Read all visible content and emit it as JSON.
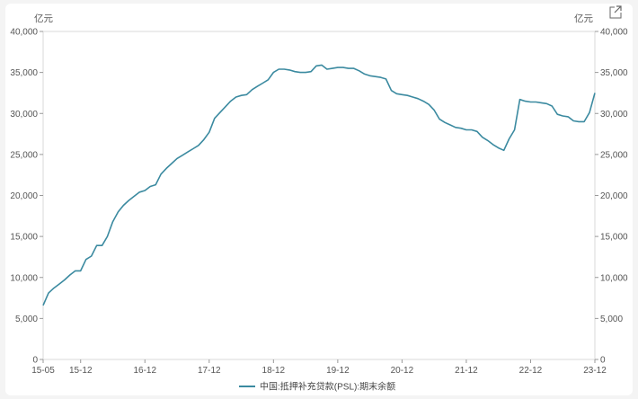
{
  "chart_data": {
    "type": "line",
    "title": "",
    "y_unit_left": "亿元",
    "y_unit_right": "亿元",
    "ylim": [
      0,
      40000
    ],
    "y_ticks": [
      0,
      5000,
      10000,
      15000,
      20000,
      25000,
      30000,
      35000,
      40000
    ],
    "y_tick_labels": [
      "0",
      "5,000",
      "10,000",
      "15,000",
      "20,000",
      "25,000",
      "30,000",
      "35,000",
      "40,000"
    ],
    "x_ticks": [
      "2015-05",
      "2015-12",
      "2016-12",
      "2017-12",
      "2018-12",
      "2019-12",
      "2020-12",
      "2021-12",
      "2022-12",
      "2023-12"
    ],
    "x_tick_labels": [
      "15-05",
      "15-12",
      "16-12",
      "17-12",
      "18-12",
      "19-12",
      "20-12",
      "21-12",
      "22-12",
      "23-12"
    ],
    "xlim": [
      "2015-05",
      "2023-12"
    ],
    "grid": false,
    "legend_position": "bottom-center",
    "series": [
      {
        "name": "中国:抵押补充贷款(PSL):期末余额",
        "color": "#3b8aa0",
        "x": [
          "2015-05",
          "2015-06",
          "2015-07",
          "2015-08",
          "2015-09",
          "2015-10",
          "2015-11",
          "2015-12",
          "2016-01",
          "2016-02",
          "2016-03",
          "2016-04",
          "2016-05",
          "2016-06",
          "2016-07",
          "2016-08",
          "2016-09",
          "2016-10",
          "2016-11",
          "2016-12",
          "2017-01",
          "2017-02",
          "2017-03",
          "2017-04",
          "2017-05",
          "2017-06",
          "2017-07",
          "2017-08",
          "2017-09",
          "2017-10",
          "2017-11",
          "2017-12",
          "2018-01",
          "2018-02",
          "2018-03",
          "2018-04",
          "2018-05",
          "2018-06",
          "2018-07",
          "2018-08",
          "2018-09",
          "2018-10",
          "2018-11",
          "2018-12",
          "2019-01",
          "2019-02",
          "2019-03",
          "2019-04",
          "2019-05",
          "2019-06",
          "2019-07",
          "2019-08",
          "2019-09",
          "2019-10",
          "2019-11",
          "2019-12",
          "2020-01",
          "2020-02",
          "2020-03",
          "2020-04",
          "2020-05",
          "2020-06",
          "2020-07",
          "2020-08",
          "2020-09",
          "2020-10",
          "2020-11",
          "2020-12",
          "2021-01",
          "2021-02",
          "2021-03",
          "2021-04",
          "2021-05",
          "2021-06",
          "2021-07",
          "2021-08",
          "2021-09",
          "2021-10",
          "2021-11",
          "2021-12",
          "2022-01",
          "2022-02",
          "2022-03",
          "2022-04",
          "2022-05",
          "2022-06",
          "2022-07",
          "2022-08",
          "2022-09",
          "2022-10",
          "2022-11",
          "2022-12",
          "2023-01",
          "2023-02",
          "2023-03",
          "2023-04",
          "2023-05",
          "2023-06",
          "2023-07",
          "2023-08",
          "2023-09",
          "2023-10",
          "2023-11",
          "2023-12"
        ],
        "values": [
          6600,
          8100,
          8700,
          9200,
          9700,
          10300,
          10800,
          10800,
          12200,
          12600,
          13900,
          13900,
          15000,
          16800,
          18000,
          18800,
          19400,
          19900,
          20400,
          20600,
          21100,
          21300,
          22600,
          23300,
          23900,
          24500,
          24900,
          25300,
          25700,
          26100,
          26800,
          27700,
          29400,
          30100,
          30800,
          31500,
          32000,
          32200,
          32300,
          32900,
          33300,
          33700,
          34100,
          35000,
          35400,
          35400,
          35300,
          35100,
          35000,
          35000,
          35100,
          35800,
          35900,
          35400,
          35500,
          35600,
          35600,
          35500,
          35500,
          35200,
          34800,
          34600,
          34500,
          34400,
          34200,
          32800,
          32400,
          32300,
          32200,
          32000,
          31800,
          31500,
          31100,
          30400,
          29300,
          28900,
          28600,
          28300,
          28200,
          28000,
          28000,
          27800,
          27100,
          26700,
          26200,
          25800,
          25500,
          26900,
          28000,
          31700,
          31500,
          31400,
          31400,
          31300,
          31200,
          30900,
          29900,
          29700,
          29600,
          29100,
          29000,
          29000,
          30100,
          32500
        ]
      }
    ]
  },
  "ui": {
    "expand_icon": "expand-icon"
  }
}
